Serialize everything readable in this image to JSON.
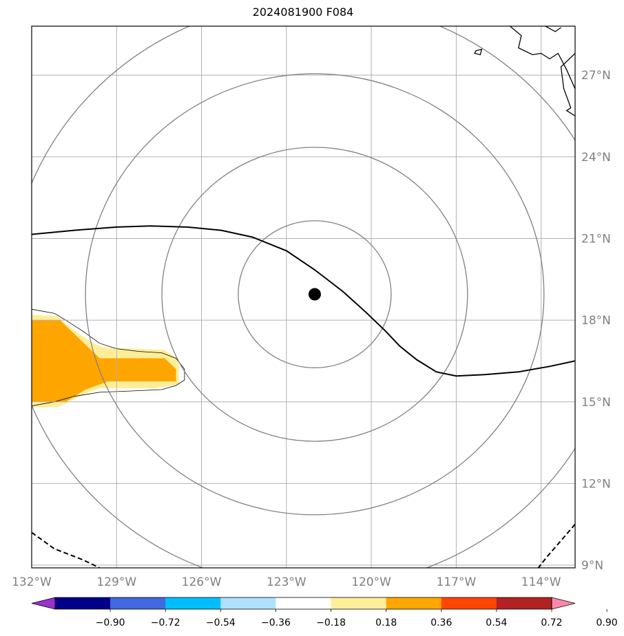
{
  "title": "2024081900 F084",
  "map": {
    "projection": "equirectangular",
    "lon_range": [
      -132,
      -112.8
    ],
    "lat_range": [
      8.9,
      28.8
    ],
    "lon_ticks": [
      {
        "value": -132,
        "label": "132°W"
      },
      {
        "value": -129,
        "label": "129°W"
      },
      {
        "value": -126,
        "label": "126°W"
      },
      {
        "value": -123,
        "label": "123°W"
      },
      {
        "value": -120,
        "label": "120°W"
      },
      {
        "value": -117,
        "label": "117°W"
      },
      {
        "value": -114,
        "label": "114°W"
      }
    ],
    "lat_ticks": [
      {
        "value": 9,
        "label": "9°N"
      },
      {
        "value": 12,
        "label": "12°N"
      },
      {
        "value": 15,
        "label": "15°N"
      },
      {
        "value": 18,
        "label": "18°N"
      },
      {
        "value": 21,
        "label": "21°N"
      },
      {
        "value": 24,
        "label": "24°N"
      },
      {
        "value": 27,
        "label": "27°N"
      }
    ],
    "grid": true,
    "center_marker": {
      "lon": -122.0,
      "lat": 18.95,
      "color": "#000000"
    },
    "range_rings_deg": [
      2.7,
      5.4,
      8.1,
      10.8
    ],
    "ring_color": "#808080",
    "solid_contour": [
      [
        -132,
        21.15
      ],
      [
        -130.5,
        21.3
      ],
      [
        -129,
        21.42
      ],
      [
        -127.8,
        21.46
      ],
      [
        -126.5,
        21.42
      ],
      [
        -125.3,
        21.3
      ],
      [
        -124.2,
        21.05
      ],
      [
        -123.0,
        20.55
      ],
      [
        -122.0,
        19.85
      ],
      [
        -121.0,
        19.05
      ],
      [
        -120.2,
        18.3
      ],
      [
        -119.5,
        17.6
      ],
      [
        -119.0,
        17.05
      ],
      [
        -118.4,
        16.55
      ],
      [
        -117.7,
        16.1
      ],
      [
        -117.0,
        15.95
      ],
      [
        -116.0,
        16.0
      ],
      [
        -114.8,
        16.1
      ],
      [
        -113.7,
        16.3
      ],
      [
        -112.8,
        16.5
      ]
    ],
    "dashed_contours": [
      [
        [
          -132,
          10.2
        ],
        [
          -131.2,
          9.6
        ],
        [
          -130.2,
          9.2
        ],
        [
          -129.6,
          8.9
        ]
      ],
      [
        [
          -112.8,
          10.5
        ],
        [
          -113.3,
          9.9
        ],
        [
          -113.8,
          9.3
        ],
        [
          -114.1,
          8.9
        ]
      ]
    ],
    "shaded_region": {
      "outer": [
        [
          -132,
          18.4
        ],
        [
          -131.2,
          18.25
        ],
        [
          -130.8,
          18.0
        ],
        [
          -130.2,
          17.6
        ],
        [
          -129.6,
          17.15
        ],
        [
          -129.0,
          16.95
        ],
        [
          -128.2,
          16.85
        ],
        [
          -127.4,
          16.8
        ],
        [
          -126.9,
          16.6
        ],
        [
          -126.6,
          16.2
        ],
        [
          -126.6,
          15.8
        ],
        [
          -126.9,
          15.6
        ],
        [
          -127.4,
          15.45
        ],
        [
          -128.4,
          15.4
        ],
        [
          -129.6,
          15.35
        ],
        [
          -130.5,
          15.2
        ],
        [
          -131.2,
          15.0
        ],
        [
          -132,
          14.85
        ]
      ],
      "light": [
        [
          -132,
          18.2
        ],
        [
          -131.1,
          18.15
        ],
        [
          -130.6,
          17.7
        ],
        [
          -129.9,
          17.2
        ],
        [
          -129.5,
          17.0
        ],
        [
          -128.3,
          16.95
        ],
        [
          -127.3,
          16.9
        ],
        [
          -126.8,
          16.55
        ],
        [
          -126.8,
          15.65
        ],
        [
          -127.6,
          15.5
        ],
        [
          -129.6,
          15.5
        ],
        [
          -130.1,
          15.3
        ],
        [
          -131.1,
          14.8
        ],
        [
          -132,
          14.8
        ]
      ],
      "dark": [
        [
          -132,
          18.0
        ],
        [
          -131.0,
          18.0
        ],
        [
          -130.2,
          17.2
        ],
        [
          -129.6,
          16.6
        ],
        [
          -127.3,
          16.6
        ],
        [
          -126.9,
          16.2
        ],
        [
          -126.9,
          15.75
        ],
        [
          -129.3,
          15.75
        ],
        [
          -130.1,
          15.45
        ],
        [
          -130.8,
          15.0
        ],
        [
          -132,
          15.0
        ]
      ],
      "light_color": "#ffee99",
      "dark_color": "#ffa500"
    },
    "coastline": [
      [
        -115.1,
        28.8
      ],
      [
        -114.7,
        28.45
      ],
      [
        -114.8,
        28.0
      ],
      [
        -114.3,
        27.75
      ],
      [
        -114.0,
        27.8
      ],
      [
        -113.7,
        27.6
      ],
      [
        -113.4,
        27.8
      ],
      [
        -113.1,
        27.2
      ],
      [
        -112.8,
        26.5
      ]
    ],
    "coast_islands": [
      [
        [
          -113.85,
          28.8
        ],
        [
          -113.5,
          28.6
        ],
        [
          -113.3,
          28.75
        ]
      ],
      [
        [
          -112.8,
          27.8
        ],
        [
          -113.3,
          27.3
        ],
        [
          -113.2,
          26.5
        ],
        [
          -112.95,
          25.8
        ],
        [
          -113.1,
          25.7
        ],
        [
          -112.8,
          25.5
        ]
      ]
    ],
    "coast_islet": [
      [
        -116.3,
        27.9
      ],
      [
        -116.1,
        27.95
      ],
      [
        -116.15,
        27.75
      ],
      [
        -116.35,
        27.8
      ]
    ]
  },
  "colorbar": {
    "colors": [
      "#9932cc",
      "#00008b",
      "#4169e1",
      "#00bfff",
      "#b0e0ff",
      "#ffffff",
      "#ffee99",
      "#ffa500",
      "#ff4500",
      "#b22222",
      "#ff88aa"
    ],
    "tick_labels": [
      "−0.90",
      "−0.72",
      "−0.54",
      "−0.36",
      "−0.18",
      "0.18",
      "0.36",
      "0.54",
      "0.72",
      "0.90"
    ],
    "extend": "both"
  }
}
